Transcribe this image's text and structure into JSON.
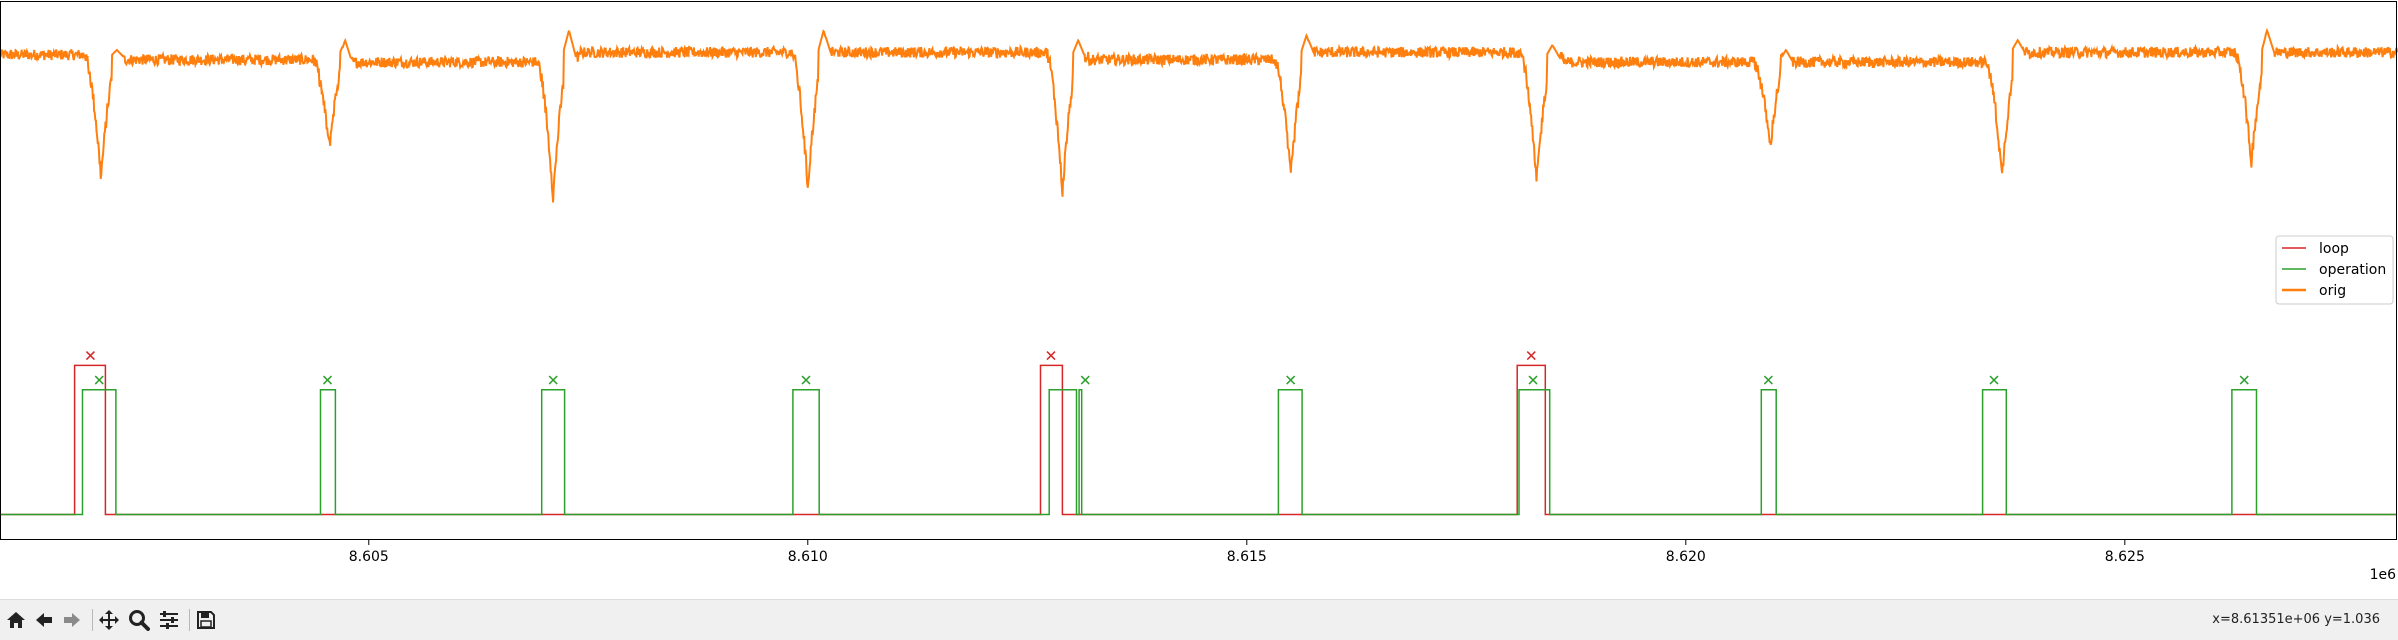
{
  "colors": {
    "loop": "#d62728",
    "operation": "#2ca02c",
    "orig": "#ff7f0e"
  },
  "toolbar": {
    "buttons": [
      {
        "name": "home-icon"
      },
      {
        "name": "back-arrow-icon"
      },
      {
        "name": "forward-arrow-icon"
      },
      {
        "name": "pan-icon"
      },
      {
        "name": "zoom-icon"
      },
      {
        "name": "configure-subplots-icon"
      },
      {
        "name": "save-icon"
      }
    ],
    "coords": "x=8.61351e+06 y=1.036"
  },
  "chart_data": {
    "type": "line",
    "title": "",
    "xlabel": "",
    "ylabel": "",
    "x_offset_label": "1e6",
    "xlim": [
      8.6008,
      8.6281
    ],
    "ylim": [
      0,
      1.1
    ],
    "x_ticks": [
      8.605,
      8.61,
      8.615,
      8.62,
      8.625
    ],
    "x_tick_labels": [
      "8.605",
      "8.610",
      "8.615",
      "8.620",
      "8.625"
    ],
    "grid": false,
    "legend_position": "center-right",
    "legend": [
      "loop",
      "operation",
      "orig"
    ],
    "series": [
      {
        "name": "loop",
        "type": "pulse",
        "baseline": 0.05,
        "level": 0.355,
        "intervals": [
          [
            8.60165,
            8.602
          ],
          [
            8.61265,
            8.6129
          ],
          [
            8.61808,
            8.6184
          ]
        ],
        "markers": [
          [
            8.60183,
            0.375
          ],
          [
            8.61277,
            0.375
          ],
          [
            8.61824,
            0.375
          ]
        ]
      },
      {
        "name": "operation",
        "type": "pulse",
        "baseline": 0.05,
        "level": 0.305,
        "intervals": [
          [
            8.60174,
            8.60212
          ],
          [
            8.60445,
            8.60462
          ],
          [
            8.60697,
            8.60723
          ],
          [
            8.60983,
            8.61013
          ],
          [
            8.61275,
            8.61306
          ],
          [
            8.61309,
            8.61312
          ],
          [
            8.61536,
            8.61563
          ],
          [
            8.6181,
            8.61845
          ],
          [
            8.62086,
            8.62103
          ],
          [
            8.62338,
            8.62365
          ],
          [
            8.62622,
            8.6265
          ]
        ],
        "markers": [
          [
            8.60193,
            0.325
          ],
          [
            8.60453,
            0.325
          ],
          [
            8.6071,
            0.325
          ],
          [
            8.60998,
            0.325
          ],
          [
            8.61316,
            0.325
          ],
          [
            8.6155,
            0.325
          ],
          [
            8.61826,
            0.325
          ],
          [
            8.62094,
            0.325
          ],
          [
            8.62351,
            0.325
          ],
          [
            8.62636,
            0.325
          ]
        ]
      },
      {
        "name": "orig",
        "type": "noise-line",
        "segments": [
          {
            "from": 8.6008,
            "to": 8.6018,
            "level": 0.99
          },
          {
            "from": 8.6022,
            "to": 8.6045,
            "level": 0.98
          },
          {
            "from": 8.6047,
            "to": 8.6071,
            "level": 0.975
          },
          {
            "from": 8.6074,
            "to": 8.61,
            "level": 0.995
          },
          {
            "from": 8.6102,
            "to": 8.6129,
            "level": 0.995
          },
          {
            "from": 8.6132,
            "to": 8.6155,
            "level": 0.98
          },
          {
            "from": 8.6157,
            "to": 8.6182,
            "level": 0.995
          },
          {
            "from": 8.6186,
            "to": 8.6209,
            "level": 0.975
          },
          {
            "from": 8.6211,
            "to": 8.6235,
            "level": 0.975
          },
          {
            "from": 8.6237,
            "to": 8.6264,
            "level": 0.995
          },
          {
            "from": 8.6266,
            "to": 8.6281,
            "level": 0.995
          }
        ],
        "dips": [
          {
            "x": 8.60195,
            "min": 0.74,
            "peak": 1.0
          },
          {
            "x": 8.60455,
            "min": 0.8,
            "peak": 1.02
          },
          {
            "x": 8.6071,
            "min": 0.7,
            "peak": 1.04
          },
          {
            "x": 8.61,
            "min": 0.72,
            "peak": 1.04
          },
          {
            "x": 8.6129,
            "min": 0.71,
            "peak": 1.02
          },
          {
            "x": 8.6155,
            "min": 0.74,
            "peak": 1.03
          },
          {
            "x": 8.6183,
            "min": 0.73,
            "peak": 1.01
          },
          {
            "x": 8.62096,
            "min": 0.8,
            "peak": 1.0
          },
          {
            "x": 8.6236,
            "min": 0.74,
            "peak": 1.02
          },
          {
            "x": 8.62644,
            "min": 0.77,
            "peak": 1.04
          }
        ]
      }
    ]
  }
}
